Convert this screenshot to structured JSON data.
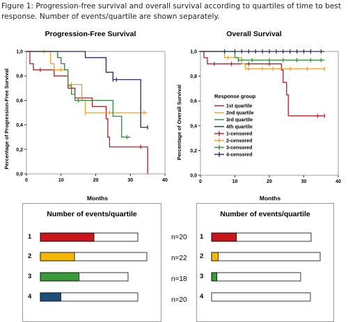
{
  "caption": "Figure 1: Progression-free survival and overall survival according to quartiles of time to best response. Number of events/quartile are shown separately.",
  "colors": {
    "q1": "#b01e23",
    "q2": "#f0a020",
    "q3": "#2f8a3a",
    "q4": "#1f2a5a",
    "bar_q1": "#c8161d",
    "bar_q2": "#f5b800",
    "bar_q3": "#3a9a3a",
    "bar_q4": "#1f4e79"
  },
  "chart_data": [
    {
      "type": "line",
      "title": "Progression-Free Survival",
      "xlabel": "Months",
      "ylabel": "Percentage of Progression-Free Survival",
      "xlim": [
        0,
        40
      ],
      "ylim": [
        0,
        1
      ],
      "xticks": [
        "0",
        "10",
        "20",
        "30",
        "40"
      ],
      "yticks": [
        "0,0",
        "0,2",
        "0,4",
        "0,6",
        "0,8",
        "1,0"
      ],
      "series": [
        {
          "key": "q1",
          "steps": [
            [
              0,
              1.0
            ],
            [
              1,
              0.9
            ],
            [
              2,
              0.85
            ],
            [
              7,
              0.85
            ],
            [
              8,
              0.8
            ],
            [
              11,
              0.8
            ],
            [
              12,
              0.7
            ],
            [
              13,
              0.7
            ],
            [
              14,
              0.62
            ],
            [
              18,
              0.62
            ],
            [
              19,
              0.55
            ],
            [
              22,
              0.55
            ],
            [
              23,
              0.45
            ],
            [
              23.5,
              0.3
            ],
            [
              24,
              0.22
            ],
            [
              35,
              0.22
            ],
            [
              35,
              0.0
            ]
          ],
          "censored": [
            [
              4,
              0.85
            ],
            [
              16,
              0.62
            ],
            [
              33,
              0.22
            ]
          ]
        },
        {
          "key": "q2",
          "steps": [
            [
              0,
              1.0
            ],
            [
              6,
              1.0
            ],
            [
              7,
              0.9
            ],
            [
              8,
              0.85
            ],
            [
              11,
              0.85
            ],
            [
              12,
              0.73
            ],
            [
              15,
              0.73
            ],
            [
              16,
              0.6
            ],
            [
              17,
              0.5
            ],
            [
              35,
              0.5
            ]
          ],
          "censored": [
            [
              5,
              1.0
            ],
            [
              7,
              0.97
            ],
            [
              10,
              0.85
            ],
            [
              13,
              0.73
            ],
            [
              17,
              0.5
            ],
            [
              24,
              0.5
            ],
            [
              34,
              0.5
            ]
          ]
        },
        {
          "key": "q3",
          "steps": [
            [
              0,
              1.0
            ],
            [
              8,
              1.0
            ],
            [
              9,
              0.95
            ],
            [
              10,
              0.9
            ],
            [
              11,
              0.85
            ],
            [
              12,
              0.72
            ],
            [
              13,
              0.65
            ],
            [
              14,
              0.6
            ],
            [
              24,
              0.6
            ],
            [
              25,
              0.47
            ],
            [
              27,
              0.47
            ],
            [
              27.5,
              0.3
            ],
            [
              30,
              0.3
            ]
          ],
          "censored": [
            [
              9,
              0.97
            ],
            [
              15,
              0.6
            ],
            [
              29,
              0.3
            ]
          ]
        },
        {
          "key": "q4",
          "steps": [
            [
              0,
              1.0
            ],
            [
              16,
              1.0
            ],
            [
              17,
              0.95
            ],
            [
              22,
              0.95
            ],
            [
              23,
              0.83
            ],
            [
              25,
              0.77
            ],
            [
              32,
              0.77
            ],
            [
              33,
              0.38
            ],
            [
              35,
              0.38
            ]
          ],
          "censored": [
            [
              25,
              0.77
            ],
            [
              26,
              0.77
            ],
            [
              35,
              0.38
            ]
          ]
        }
      ]
    },
    {
      "type": "line",
      "title": "Overall Survival",
      "xlabel": "Months",
      "ylabel": "Percentage of Overall Survival",
      "xlim": [
        0,
        40
      ],
      "ylim": [
        0,
        1
      ],
      "xticks": [
        "0",
        "10",
        "20",
        "30",
        "40"
      ],
      "yticks": [
        "0,0",
        "0,2",
        "0,4",
        "0,6",
        "0,8",
        "1,0"
      ],
      "legend": {
        "title": "Response group",
        "position": "left-middle",
        "entries": [
          {
            "label": "1st quartile",
            "key": "q1",
            "marker": false
          },
          {
            "label": "2nd quartile",
            "key": "q2",
            "marker": false
          },
          {
            "label": "3rd quartile",
            "key": "q3",
            "marker": false
          },
          {
            "label": "4th quartile",
            "key": "q4",
            "marker": false
          },
          {
            "label": "1-censored",
            "key": "q1",
            "marker": true
          },
          {
            "label": "2-censored",
            "key": "q2",
            "marker": true
          },
          {
            "label": "3-censored",
            "key": "q3",
            "marker": true
          },
          {
            "label": "4-censored",
            "key": "q4",
            "marker": true
          }
        ]
      },
      "series": [
        {
          "key": "q1",
          "steps": [
            [
              0,
              1.0
            ],
            [
              1,
              0.95
            ],
            [
              2,
              0.9
            ],
            [
              23,
              0.9
            ],
            [
              23.5,
              0.85
            ],
            [
              24,
              0.75
            ],
            [
              25,
              0.65
            ],
            [
              25.5,
              0.48
            ],
            [
              36,
              0.48
            ]
          ],
          "censored": [
            [
              4,
              0.9
            ],
            [
              9,
              0.9
            ],
            [
              14,
              0.9
            ],
            [
              20,
              0.9
            ],
            [
              34,
              0.48
            ],
            [
              36,
              0.48
            ]
          ]
        },
        {
          "key": "q2",
          "steps": [
            [
              0,
              1.0
            ],
            [
              6,
              1.0
            ],
            [
              7,
              0.95
            ],
            [
              11,
              0.95
            ],
            [
              12,
              0.9
            ],
            [
              13,
              0.86
            ],
            [
              36,
              0.86
            ]
          ],
          "censored": [
            [
              8,
              0.95
            ],
            [
              14,
              0.86
            ],
            [
              18,
              0.86
            ],
            [
              21,
              0.86
            ],
            [
              26,
              0.86
            ],
            [
              31,
              0.86
            ],
            [
              36,
              0.86
            ]
          ]
        },
        {
          "key": "q3",
          "steps": [
            [
              0,
              1.0
            ],
            [
              9,
              1.0
            ],
            [
              10,
              0.95
            ],
            [
              11,
              0.93
            ],
            [
              36,
              0.93
            ]
          ],
          "censored": [
            [
              11,
              0.93
            ],
            [
              15,
              0.93
            ],
            [
              20,
              0.93
            ],
            [
              24,
              0.93
            ],
            [
              28,
              0.93
            ],
            [
              32,
              0.93
            ],
            [
              35,
              0.93
            ]
          ]
        },
        {
          "key": "q4",
          "steps": [
            [
              0,
              1.0
            ],
            [
              36,
              1.0
            ]
          ],
          "censored": [
            [
              7,
              1.0
            ],
            [
              10,
              1.0
            ],
            [
              12,
              1.0
            ],
            [
              14,
              1.0
            ],
            [
              16,
              1.0
            ],
            [
              18,
              1.0
            ],
            [
              20,
              1.0
            ],
            [
              22,
              1.0
            ],
            [
              24,
              1.0
            ],
            [
              26,
              1.0
            ],
            [
              28,
              1.0
            ],
            [
              30,
              1.0
            ],
            [
              32,
              1.0
            ],
            [
              35,
              1.0
            ]
          ]
        }
      ]
    },
    {
      "type": "bar",
      "title": "Number of events/quartile",
      "categories": [
        "1",
        "2",
        "3",
        "4"
      ],
      "series": [
        {
          "values": [
            0.55,
            0.32,
            0.44,
            0.21
          ],
          "totals": [
            "n=20",
            "n=22",
            "n=18",
            "n=20"
          ]
        }
      ]
    },
    {
      "type": "bar",
      "title": "Number of events/quartile",
      "categories": [
        "1",
        "2",
        "3",
        "4"
      ],
      "series": [
        {
          "values": [
            0.25,
            0.06,
            0.06,
            0.0
          ]
        }
      ]
    }
  ]
}
